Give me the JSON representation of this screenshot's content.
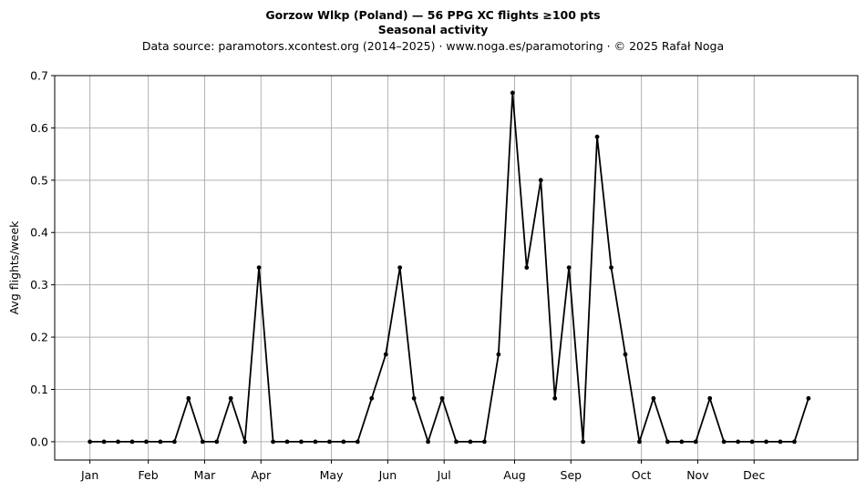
{
  "chart_data": {
    "type": "line",
    "title": "Gorzow Wlkp (Poland)  —  56 PPG XC flights ≥100 pts",
    "subtitle": "Seasonal activity",
    "source": "Data source: paramotors.xcontest.org (2014–2025)  ·  www.noga.es/paramotoring  ·  © 2025 Rafał Noga",
    "xlabel": "",
    "ylabel": "Avg flights/week",
    "ylim": [
      -0.035,
      0.7
    ],
    "xlim": [
      -2.5,
      54.5
    ],
    "grid": true,
    "yticks": [
      "0.0",
      "0.1",
      "0.2",
      "0.3",
      "0.4",
      "0.5",
      "0.6",
      "0.7"
    ],
    "xticks": [
      {
        "label": "Jan",
        "week": 0
      },
      {
        "label": "Feb",
        "week": 4.14
      },
      {
        "label": "Mar",
        "week": 8.14
      },
      {
        "label": "Apr",
        "week": 12.14
      },
      {
        "label": "May",
        "week": 17.14
      },
      {
        "label": "Jun",
        "week": 21.14
      },
      {
        "label": "Jul",
        "week": 25.14
      },
      {
        "label": "Aug",
        "week": 30.14
      },
      {
        "label": "Sep",
        "week": 34.14
      },
      {
        "label": "Oct",
        "week": 39.14
      },
      {
        "label": "Nov",
        "week": 43.14
      },
      {
        "label": "Dec",
        "week": 47.14
      }
    ],
    "series": [
      {
        "color": "#000000",
        "x": [
          0,
          1,
          2,
          3,
          4,
          5,
          6,
          7,
          8,
          9,
          10,
          11,
          12,
          13,
          14,
          15,
          16,
          17,
          18,
          19,
          20,
          21,
          22,
          23,
          24,
          25,
          26,
          27,
          28,
          29,
          30,
          31,
          32,
          33,
          34,
          35,
          36,
          37,
          38,
          39,
          40,
          41,
          42,
          43,
          44,
          45,
          46,
          47,
          48,
          49,
          50,
          51
        ],
        "values": [
          0,
          0,
          0,
          0,
          0,
          0,
          0,
          0.083,
          0,
          0,
          0.083,
          0,
          0.333,
          0,
          0,
          0,
          0,
          0,
          0,
          0,
          0.083,
          0.167,
          0.333,
          0.083,
          0,
          0.083,
          0,
          0,
          0,
          0.167,
          0.667,
          0.333,
          0.5,
          0.083,
          0.333,
          0,
          0.583,
          0.333,
          0.167,
          0,
          0.083,
          0,
          0,
          0,
          0.083,
          0,
          0,
          0,
          0,
          0,
          0,
          0.083
        ]
      }
    ]
  }
}
